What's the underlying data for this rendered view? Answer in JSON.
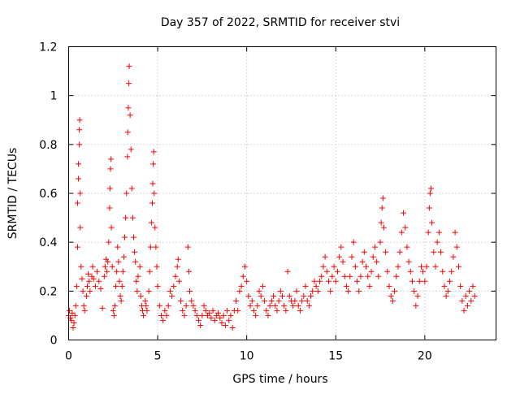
{
  "chart_data": {
    "type": "scatter",
    "title": "Day 357 of 2022, SRMTID for receiver stvi",
    "xlabel": "GPS time / hours",
    "ylabel": "SRMTID / TECUs",
    "xlim": [
      0,
      24
    ],
    "ylim": [
      0,
      1.2
    ],
    "x_ticks": [
      0,
      5,
      10,
      15,
      20
    ],
    "x_tick_labels": [
      "0",
      "5",
      "10",
      "15",
      "20"
    ],
    "y_ticks": [
      0,
      0.2,
      0.4,
      0.6,
      0.8,
      1.0,
      1.2
    ],
    "y_tick_labels": [
      "0",
      "0.2",
      "0.4",
      "0.6",
      "0.8",
      "1",
      "1.2"
    ],
    "grid": true,
    "marker": "+",
    "series": [
      {
        "name": "SRMTID",
        "color": "#ff0000",
        "points": [
          [
            0.0,
            0.1
          ],
          [
            0.05,
            0.12
          ],
          [
            0.1,
            0.09
          ],
          [
            0.15,
            0.08
          ],
          [
            0.2,
            0.11
          ],
          [
            0.25,
            0.05
          ],
          [
            0.3,
            0.07
          ],
          [
            0.35,
            0.1
          ],
          [
            0.4,
            0.14
          ],
          [
            0.45,
            0.22
          ],
          [
            0.5,
            0.38
          ],
          [
            0.5,
            0.56
          ],
          [
            0.55,
            0.66
          ],
          [
            0.55,
            0.72
          ],
          [
            0.6,
            0.8
          ],
          [
            0.6,
            0.86
          ],
          [
            0.62,
            0.9
          ],
          [
            0.65,
            0.6
          ],
          [
            0.65,
            0.46
          ],
          [
            0.7,
            0.3
          ],
          [
            0.75,
            0.25
          ],
          [
            0.8,
            0.2
          ],
          [
            0.85,
            0.14
          ],
          [
            0.9,
            0.12
          ],
          [
            1.0,
            0.18
          ],
          [
            1.05,
            0.22
          ],
          [
            1.1,
            0.27
          ],
          [
            1.15,
            0.24
          ],
          [
            1.2,
            0.2
          ],
          [
            1.3,
            0.26
          ],
          [
            1.35,
            0.3
          ],
          [
            1.4,
            0.25
          ],
          [
            1.5,
            0.22
          ],
          [
            1.6,
            0.28
          ],
          [
            1.7,
            0.24
          ],
          [
            1.8,
            0.21
          ],
          [
            1.9,
            0.13
          ],
          [
            2.0,
            0.26
          ],
          [
            2.05,
            0.3
          ],
          [
            2.1,
            0.33
          ],
          [
            2.15,
            0.28
          ],
          [
            2.2,
            0.32
          ],
          [
            2.25,
            0.4
          ],
          [
            2.3,
            0.54
          ],
          [
            2.32,
            0.62
          ],
          [
            2.35,
            0.7
          ],
          [
            2.38,
            0.74
          ],
          [
            2.4,
            0.46
          ],
          [
            2.45,
            0.3
          ],
          [
            2.5,
            0.12
          ],
          [
            2.55,
            0.1
          ],
          [
            2.6,
            0.14
          ],
          [
            2.65,
            0.22
          ],
          [
            2.7,
            0.28
          ],
          [
            2.75,
            0.38
          ],
          [
            2.8,
            0.32
          ],
          [
            2.85,
            0.24
          ],
          [
            2.9,
            0.18
          ],
          [
            2.95,
            0.16
          ],
          [
            3.0,
            0.22
          ],
          [
            3.05,
            0.28
          ],
          [
            3.1,
            0.34
          ],
          [
            3.15,
            0.42
          ],
          [
            3.2,
            0.5
          ],
          [
            3.25,
            0.6
          ],
          [
            3.3,
            0.75
          ],
          [
            3.32,
            0.85
          ],
          [
            3.35,
            0.95
          ],
          [
            3.38,
            1.05
          ],
          [
            3.4,
            1.12
          ],
          [
            3.45,
            0.92
          ],
          [
            3.5,
            0.78
          ],
          [
            3.55,
            0.62
          ],
          [
            3.6,
            0.5
          ],
          [
            3.65,
            0.42
          ],
          [
            3.7,
            0.36
          ],
          [
            3.75,
            0.32
          ],
          [
            3.8,
            0.24
          ],
          [
            3.85,
            0.2
          ],
          [
            3.9,
            0.26
          ],
          [
            4.0,
            0.3
          ],
          [
            4.05,
            0.18
          ],
          [
            4.1,
            0.14
          ],
          [
            4.15,
            0.12
          ],
          [
            4.2,
            0.1
          ],
          [
            4.3,
            0.16
          ],
          [
            4.35,
            0.14
          ],
          [
            4.4,
            0.12
          ],
          [
            4.5,
            0.2
          ],
          [
            4.55,
            0.28
          ],
          [
            4.6,
            0.38
          ],
          [
            4.65,
            0.48
          ],
          [
            4.7,
            0.56
          ],
          [
            4.72,
            0.64
          ],
          [
            4.75,
            0.72
          ],
          [
            4.78,
            0.77
          ],
          [
            4.8,
            0.6
          ],
          [
            4.85,
            0.46
          ],
          [
            4.9,
            0.38
          ],
          [
            4.95,
            0.3
          ],
          [
            5.0,
            0.22
          ],
          [
            5.1,
            0.14
          ],
          [
            5.2,
            0.1
          ],
          [
            5.3,
            0.08
          ],
          [
            5.4,
            0.12
          ],
          [
            5.5,
            0.1
          ],
          [
            5.6,
            0.14
          ],
          [
            5.7,
            0.2
          ],
          [
            5.8,
            0.18
          ],
          [
            5.9,
            0.22
          ],
          [
            6.0,
            0.26
          ],
          [
            6.1,
            0.3
          ],
          [
            6.15,
            0.33
          ],
          [
            6.2,
            0.24
          ],
          [
            6.3,
            0.16
          ],
          [
            6.4,
            0.12
          ],
          [
            6.5,
            0.1
          ],
          [
            6.6,
            0.14
          ],
          [
            6.7,
            0.38
          ],
          [
            6.75,
            0.28
          ],
          [
            6.8,
            0.2
          ],
          [
            6.9,
            0.16
          ],
          [
            7.0,
            0.14
          ],
          [
            7.1,
            0.12
          ],
          [
            7.2,
            0.1
          ],
          [
            7.3,
            0.08
          ],
          [
            7.4,
            0.06
          ],
          [
            7.5,
            0.1
          ],
          [
            7.6,
            0.14
          ],
          [
            7.7,
            0.12
          ],
          [
            7.8,
            0.1
          ],
          [
            7.9,
            0.11
          ],
          [
            8.0,
            0.09
          ],
          [
            8.1,
            0.12
          ],
          [
            8.2,
            0.08
          ],
          [
            8.3,
            0.1
          ],
          [
            8.4,
            0.11
          ],
          [
            8.5,
            0.09
          ],
          [
            8.6,
            0.07
          ],
          [
            8.7,
            0.1
          ],
          [
            8.8,
            0.06
          ],
          [
            8.9,
            0.12
          ],
          [
            9.0,
            0.08
          ],
          [
            9.1,
            0.1
          ],
          [
            9.2,
            0.05
          ],
          [
            9.3,
            0.12
          ],
          [
            9.4,
            0.16
          ],
          [
            9.5,
            0.12
          ],
          [
            9.6,
            0.2
          ],
          [
            9.7,
            0.22
          ],
          [
            9.8,
            0.26
          ],
          [
            9.9,
            0.3
          ],
          [
            10.0,
            0.24
          ],
          [
            10.1,
            0.18
          ],
          [
            10.2,
            0.14
          ],
          [
            10.3,
            0.16
          ],
          [
            10.4,
            0.12
          ],
          [
            10.5,
            0.1
          ],
          [
            10.6,
            0.14
          ],
          [
            10.7,
            0.2
          ],
          [
            10.8,
            0.18
          ],
          [
            10.9,
            0.22
          ],
          [
            11.0,
            0.16
          ],
          [
            11.1,
            0.12
          ],
          [
            11.2,
            0.1
          ],
          [
            11.3,
            0.14
          ],
          [
            11.4,
            0.16
          ],
          [
            11.5,
            0.18
          ],
          [
            11.6,
            0.14
          ],
          [
            11.7,
            0.12
          ],
          [
            11.8,
            0.16
          ],
          [
            11.9,
            0.2
          ],
          [
            12.0,
            0.18
          ],
          [
            12.1,
            0.14
          ],
          [
            12.2,
            0.12
          ],
          [
            12.3,
            0.28
          ],
          [
            12.4,
            0.18
          ],
          [
            12.5,
            0.16
          ],
          [
            12.6,
            0.14
          ],
          [
            12.7,
            0.16
          ],
          [
            12.8,
            0.2
          ],
          [
            12.9,
            0.14
          ],
          [
            13.0,
            0.12
          ],
          [
            13.1,
            0.16
          ],
          [
            13.2,
            0.18
          ],
          [
            13.3,
            0.22
          ],
          [
            13.4,
            0.16
          ],
          [
            13.5,
            0.14
          ],
          [
            13.6,
            0.18
          ],
          [
            13.7,
            0.2
          ],
          [
            13.8,
            0.24
          ],
          [
            13.9,
            0.22
          ],
          [
            14.0,
            0.2
          ],
          [
            14.1,
            0.24
          ],
          [
            14.2,
            0.26
          ],
          [
            14.3,
            0.3
          ],
          [
            14.4,
            0.34
          ],
          [
            14.5,
            0.28
          ],
          [
            14.6,
            0.24
          ],
          [
            14.7,
            0.2
          ],
          [
            14.8,
            0.26
          ],
          [
            14.9,
            0.3
          ],
          [
            15.0,
            0.24
          ],
          [
            15.1,
            0.28
          ],
          [
            15.2,
            0.34
          ],
          [
            15.3,
            0.38
          ],
          [
            15.4,
            0.32
          ],
          [
            15.5,
            0.26
          ],
          [
            15.6,
            0.22
          ],
          [
            15.7,
            0.2
          ],
          [
            15.8,
            0.26
          ],
          [
            15.9,
            0.34
          ],
          [
            16.0,
            0.4
          ],
          [
            16.1,
            0.3
          ],
          [
            16.2,
            0.24
          ],
          [
            16.3,
            0.2
          ],
          [
            16.4,
            0.26
          ],
          [
            16.5,
            0.32
          ],
          [
            16.6,
            0.36
          ],
          [
            16.7,
            0.3
          ],
          [
            16.8,
            0.26
          ],
          [
            16.9,
            0.22
          ],
          [
            17.0,
            0.28
          ],
          [
            17.1,
            0.34
          ],
          [
            17.2,
            0.38
          ],
          [
            17.3,
            0.32
          ],
          [
            17.4,
            0.26
          ],
          [
            17.5,
            0.4
          ],
          [
            17.55,
            0.48
          ],
          [
            17.6,
            0.54
          ],
          [
            17.65,
            0.58
          ],
          [
            17.7,
            0.46
          ],
          [
            17.8,
            0.36
          ],
          [
            17.9,
            0.28
          ],
          [
            18.0,
            0.22
          ],
          [
            18.1,
            0.18
          ],
          [
            18.2,
            0.16
          ],
          [
            18.3,
            0.2
          ],
          [
            18.4,
            0.26
          ],
          [
            18.5,
            0.3
          ],
          [
            18.6,
            0.36
          ],
          [
            18.7,
            0.44
          ],
          [
            18.8,
            0.52
          ],
          [
            18.9,
            0.46
          ],
          [
            19.0,
            0.38
          ],
          [
            19.1,
            0.32
          ],
          [
            19.2,
            0.28
          ],
          [
            19.3,
            0.24
          ],
          [
            19.4,
            0.2
          ],
          [
            19.5,
            0.14
          ],
          [
            19.6,
            0.18
          ],
          [
            19.7,
            0.24
          ],
          [
            19.8,
            0.3
          ],
          [
            19.9,
            0.28
          ],
          [
            20.0,
            0.24
          ],
          [
            20.1,
            0.3
          ],
          [
            20.2,
            0.44
          ],
          [
            20.25,
            0.54
          ],
          [
            20.3,
            0.6
          ],
          [
            20.35,
            0.62
          ],
          [
            20.4,
            0.48
          ],
          [
            20.5,
            0.36
          ],
          [
            20.6,
            0.3
          ],
          [
            20.7,
            0.4
          ],
          [
            20.8,
            0.44
          ],
          [
            20.9,
            0.36
          ],
          [
            21.0,
            0.28
          ],
          [
            21.1,
            0.22
          ],
          [
            21.2,
            0.18
          ],
          [
            21.3,
            0.2
          ],
          [
            21.4,
            0.24
          ],
          [
            21.5,
            0.28
          ],
          [
            21.6,
            0.34
          ],
          [
            21.7,
            0.44
          ],
          [
            21.8,
            0.38
          ],
          [
            21.9,
            0.3
          ],
          [
            22.0,
            0.22
          ],
          [
            22.1,
            0.16
          ],
          [
            22.2,
            0.12
          ],
          [
            22.3,
            0.18
          ],
          [
            22.4,
            0.14
          ],
          [
            22.5,
            0.2
          ],
          [
            22.6,
            0.16
          ],
          [
            22.7,
            0.22
          ],
          [
            22.8,
            0.18
          ]
        ]
      }
    ]
  }
}
